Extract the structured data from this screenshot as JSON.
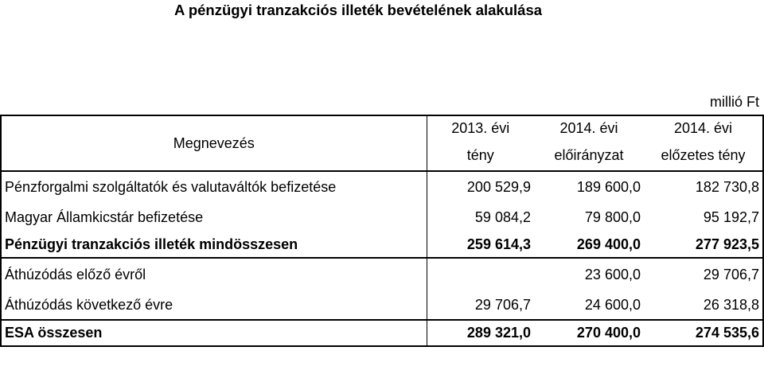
{
  "title": "A pénzügyi tranzakciós illeték bevételének alakulása",
  "unit": "millió Ft",
  "header": {
    "name": "Megnevezés",
    "cols": [
      {
        "year": "2013. évi",
        "sub": "tény"
      },
      {
        "year": "2014. évi",
        "sub": "előirányzat"
      },
      {
        "year": "2014. évi",
        "sub": "előzetes tény"
      }
    ]
  },
  "rows": [
    {
      "label": "Pénzforgalmi szolgáltatók és valutaváltók befizetése",
      "v": [
        "200 529,9",
        "189 600,0",
        "182 730,8"
      ]
    },
    {
      "label": "Magyar Államkicstár befizetése",
      "v": [
        "59 084,2",
        "79 800,0",
        "95 192,7"
      ]
    },
    {
      "label": "Pénzügyi tranzakciós illeték mindösszesen",
      "v": [
        "259 614,3",
        "269 400,0",
        "277 923,5"
      ]
    },
    {
      "label": "Áthúzódás előző évről",
      "v": [
        "",
        "23 600,0",
        "29 706,7"
      ]
    },
    {
      "label": "Áthúzódás következő évre",
      "v": [
        "29 706,7",
        "24 600,0",
        "26 318,8"
      ]
    },
    {
      "label": "ESA összesen",
      "v": [
        "289 321,0",
        "270 400,0",
        "274 535,6"
      ]
    }
  ]
}
